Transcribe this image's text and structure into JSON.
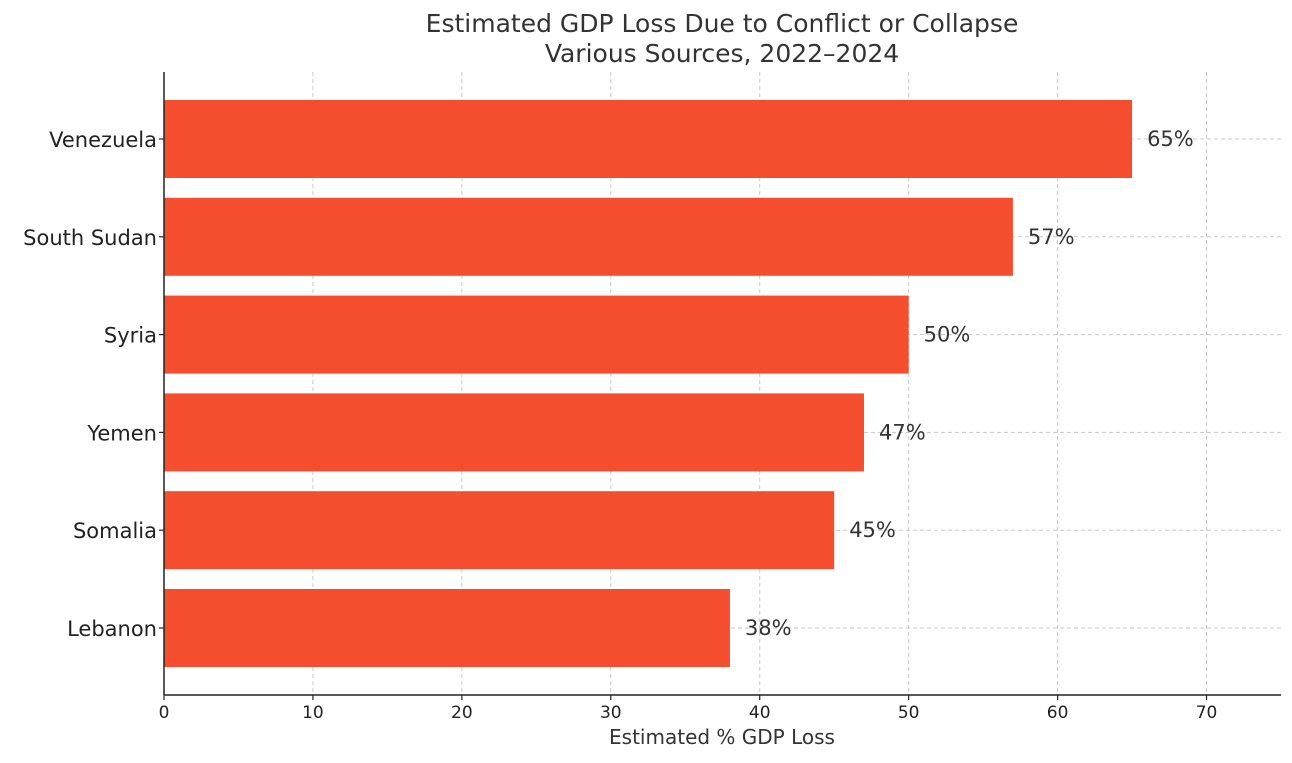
{
  "chart_data": {
    "type": "bar",
    "orientation": "horizontal",
    "title": "Estimated GDP Loss Due to Conflict or Collapse",
    "subtitle": "Various Sources, 2022–2024",
    "xlabel": "Estimated % GDP Loss",
    "ylabel": "",
    "categories": [
      "Venezuela",
      "South Sudan",
      "Syria",
      "Yemen",
      "Somalia",
      "Lebanon"
    ],
    "values": [
      65,
      57,
      50,
      47,
      45,
      38
    ],
    "data_labels": [
      "65%",
      "57%",
      "50%",
      "47%",
      "45%",
      "38%"
    ],
    "xlim": [
      0,
      75
    ],
    "xticks": [
      0,
      10,
      20,
      30,
      40,
      50,
      60,
      70
    ],
    "xtick_labels": [
      "0",
      "10",
      "20",
      "30",
      "40",
      "50",
      "60",
      "70"
    ],
    "grid": true,
    "grid_style": "dashed",
    "legend": "none",
    "colors": {
      "bar": "#f44e2f",
      "text": "#333333",
      "axis": "#222222",
      "grid": "#c8c8c8"
    }
  }
}
